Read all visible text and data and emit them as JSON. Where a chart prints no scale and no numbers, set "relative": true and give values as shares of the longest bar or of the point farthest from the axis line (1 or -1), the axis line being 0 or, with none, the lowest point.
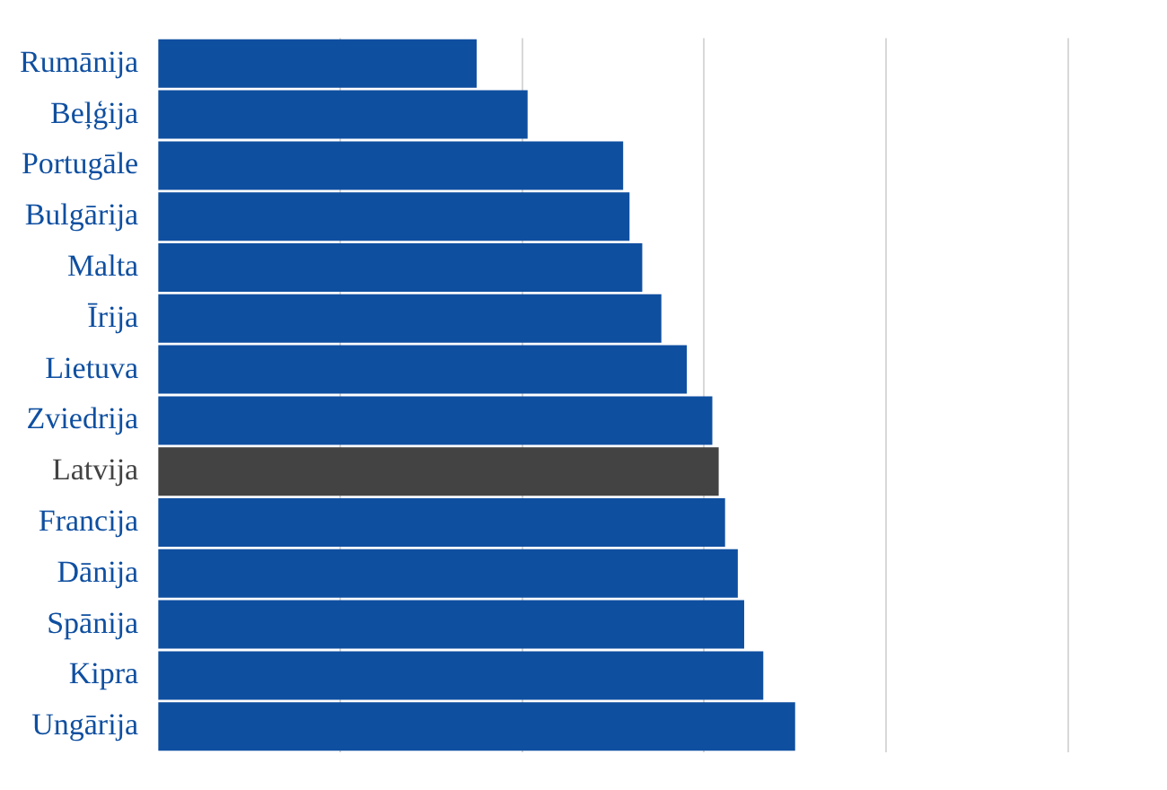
{
  "chart_data": {
    "type": "bar",
    "orientation": "horizontal",
    "relative": true,
    "grid": "x",
    "categories": [
      "Rumānija",
      "Beļģija",
      "Portugāle",
      "Bulgārija",
      "Malta",
      "Īrija",
      "Lietuva",
      "Zviedrija",
      "Latvija",
      "Francija",
      "Dānija",
      "Spānija",
      "Kipra",
      "Ungārija"
    ],
    "values": [
      0.5,
      0.58,
      0.73,
      0.74,
      0.76,
      0.79,
      0.83,
      0.87,
      0.88,
      0.89,
      0.91,
      0.92,
      0.95,
      1
    ],
    "colors": [
      "#0f4fa0",
      "#0f4fa0",
      "#0f4fa0",
      "#0f4fa0",
      "#0f4fa0",
      "#0f4fa0",
      "#0f4fa0",
      "#0f4fa0",
      "#434343",
      "#0f4fa0",
      "#0f4fa0",
      "#0f4fa0",
      "#0f4fa0",
      "#0f4fa0"
    ]
  }
}
